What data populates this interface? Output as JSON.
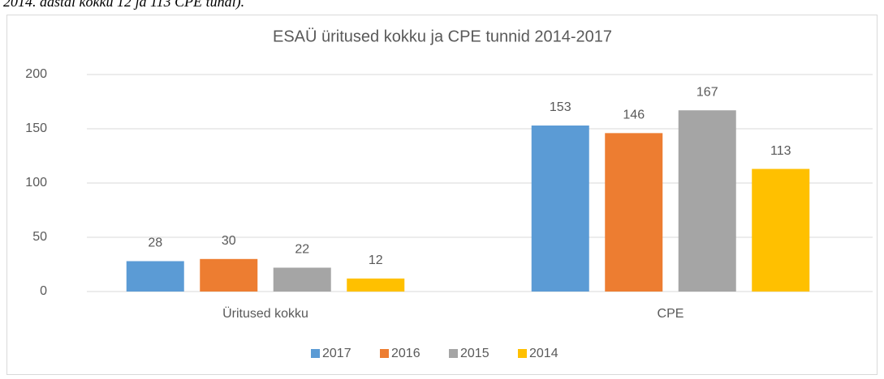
{
  "header_fragment": "2014. aastal kokku 12 ja 113 CPE tundi).",
  "chart_data": {
    "type": "bar",
    "title": "ESAÜ üritused kokku ja CPE tunnid 2014-2017",
    "categories": [
      "Üritused kokku",
      "CPE"
    ],
    "series": [
      {
        "name": "2017",
        "color": "#5b9bd5",
        "values": [
          28,
          153
        ]
      },
      {
        "name": "2016",
        "color": "#ed7d31",
        "values": [
          30,
          146
        ]
      },
      {
        "name": "2015",
        "color": "#a5a5a5",
        "values": [
          22,
          167
        ]
      },
      {
        "name": "2014",
        "color": "#ffc000",
        "values": [
          12,
          113
        ]
      }
    ],
    "ylim": [
      0,
      200
    ],
    "yticks": [
      0,
      50,
      100,
      150,
      200
    ],
    "grid": true,
    "legend": "bottom",
    "data_labels": true
  }
}
